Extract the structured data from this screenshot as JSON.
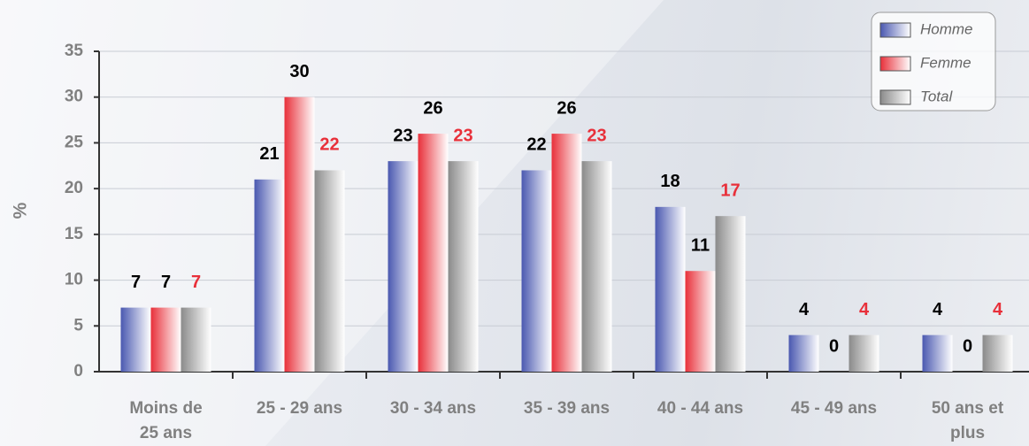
{
  "chart_data": {
    "type": "bar",
    "y_label": "%",
    "categories": [
      "Moins de\n25 ans",
      "25 - 29 ans",
      "30 - 34 ans",
      "35 - 39 ans",
      "40 - 44 ans",
      "45 - 49 ans",
      "50 ans et\nplus"
    ],
    "series": [
      {
        "name": "Homme",
        "color": "#4a58b0",
        "label_color": "#000000",
        "values": [
          7,
          21,
          23,
          22,
          18,
          4,
          4
        ]
      },
      {
        "name": "Femme",
        "color": "#e8303a",
        "label_color": "#000000",
        "values": [
          7,
          30,
          26,
          26,
          11,
          0,
          0
        ]
      },
      {
        "name": "Total",
        "color": "#8a8a8a",
        "label_color": "#e8303a",
        "values": [
          7,
          22,
          23,
          23,
          17,
          4,
          4
        ]
      }
    ],
    "ylim": [
      0,
      35
    ],
    "yticks": [
      0,
      5,
      10,
      15,
      20,
      25,
      30,
      35
    ],
    "grid": true,
    "legend": "top-right"
  }
}
